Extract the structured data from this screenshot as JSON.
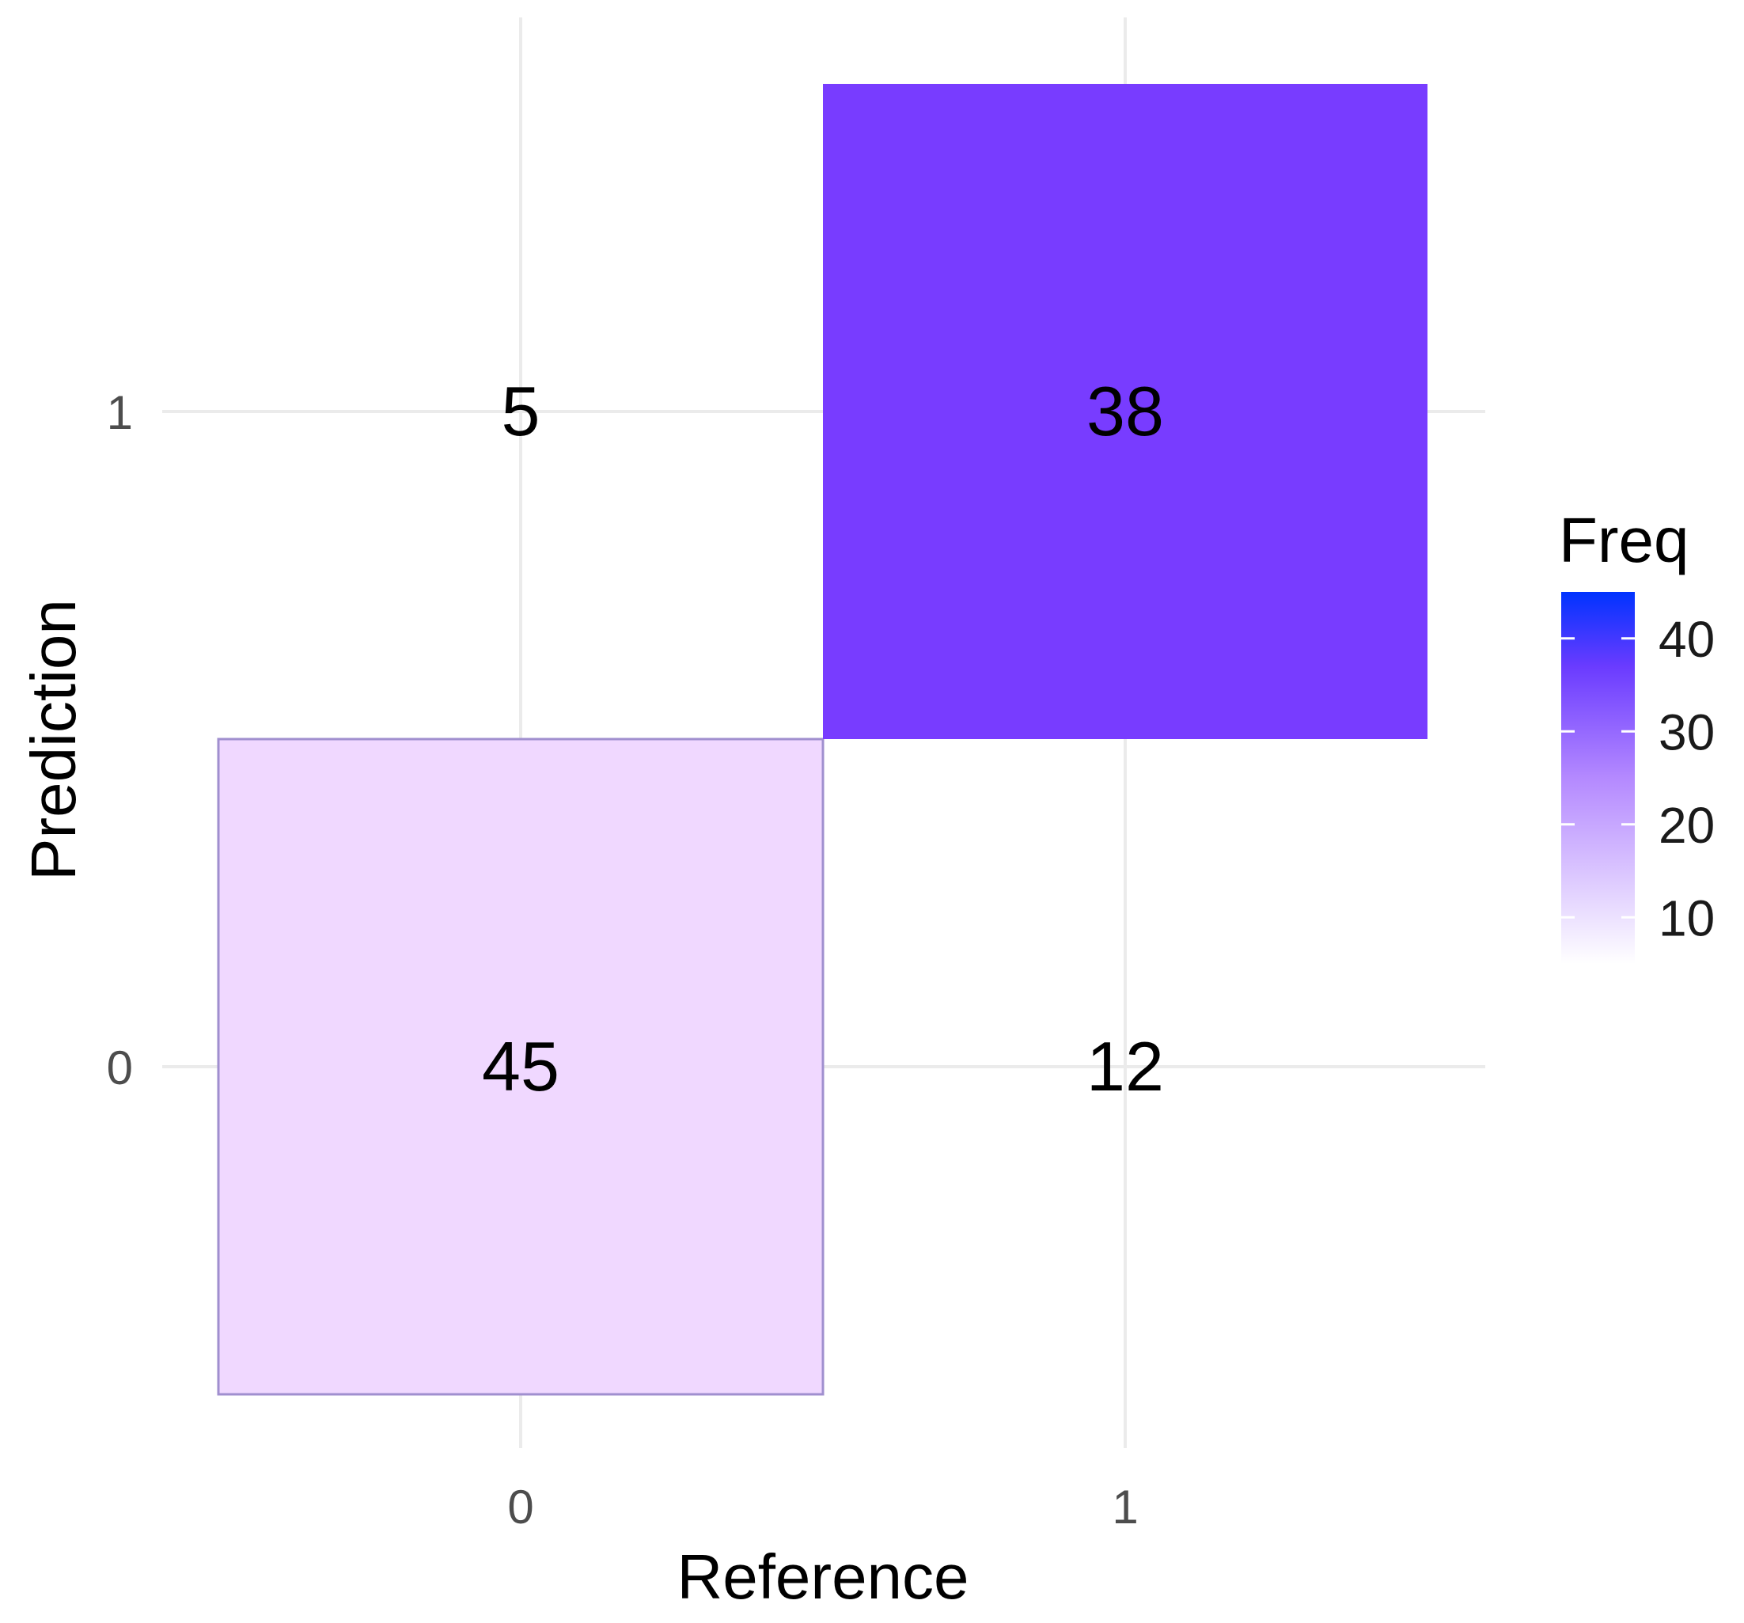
{
  "chart_data": {
    "type": "heatmap",
    "title": "",
    "xlabel": "Reference",
    "ylabel": "Prediction",
    "x_categories": [
      "0",
      "1"
    ],
    "y_categories": [
      "0",
      "1"
    ],
    "cells": [
      {
        "x": "0",
        "y": "0",
        "value": 45
      },
      {
        "x": "1",
        "y": "0",
        "value": 12
      },
      {
        "x": "0",
        "y": "1",
        "value": 5
      },
      {
        "x": "1",
        "y": "1",
        "value": 38
      }
    ],
    "grid": true,
    "legend": {
      "title": "Freq",
      "placement": "right",
      "range": [
        5,
        45
      ],
      "ticks": [
        10,
        20,
        30,
        40
      ],
      "tick_labels": [
        "10",
        "20",
        "30",
        "40"
      ],
      "low_color": "#ffffff",
      "high_color": "#0033ff"
    }
  }
}
